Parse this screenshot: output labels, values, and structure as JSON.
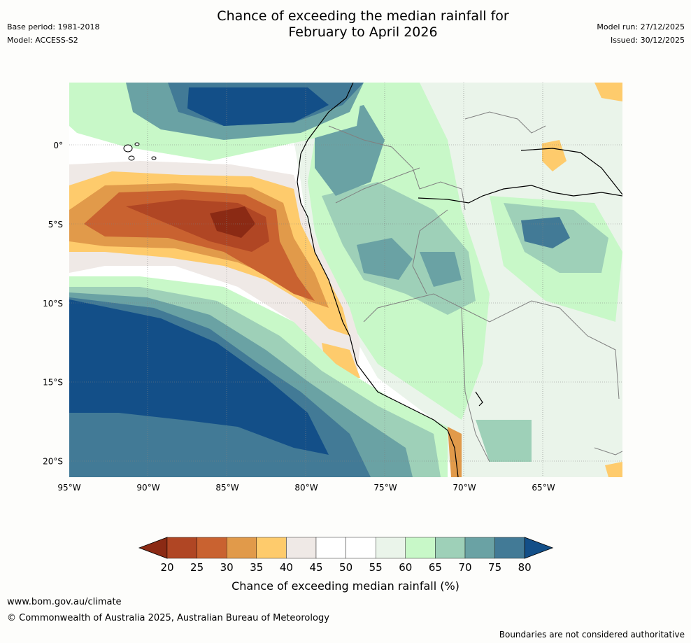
{
  "title_line1": "Chance of exceeding the median rainfall for",
  "title_line2": "February to April 2026",
  "base_period": "Base period: 1981-2018",
  "model": "Model: ACCESS-S2",
  "model_run": "Model run: 27/12/2025",
  "issued": "Issued: 30/12/2025",
  "lat_labels": [
    {
      "text": "0°",
      "lat": 0
    },
    {
      "text": "5°S",
      "lat": -5
    },
    {
      "text": "10°S",
      "lat": -10
    },
    {
      "text": "15°S",
      "lat": -15
    },
    {
      "text": "20°S",
      "lat": -20
    }
  ],
  "lon_labels": [
    {
      "text": "95°W",
      "lon": -95
    },
    {
      "text": "90°W",
      "lon": -90
    },
    {
      "text": "85°W",
      "lon": -85
    },
    {
      "text": "80°W",
      "lon": -80
    },
    {
      "text": "75°W",
      "lon": -75
    },
    {
      "text": "70°W",
      "lon": -70
    },
    {
      "text": "65°W",
      "lon": -65
    }
  ],
  "colorbar": {
    "label": "Chance of exceeding median rainfall (%)",
    "ticks": [
      "20",
      "25",
      "30",
      "35",
      "40",
      "45",
      "50",
      "55",
      "60",
      "65",
      "70",
      "75",
      "80"
    ],
    "colors": [
      "#8b2a14",
      "#b04624",
      "#c96230",
      "#e19a4a",
      "#fecb6c",
      "#efe9e6",
      "#ffffff",
      "#ffffff",
      "#eaf4ea",
      "#c8f8c8",
      "#9ed0b8",
      "#6aa2a4",
      "#427a96",
      "#134f88"
    ]
  },
  "colors": {
    "very_dry": "#8b2a14",
    "dry_1": "#b04624",
    "dry_2": "#c96230",
    "dry_3": "#e19a4a",
    "dry_4": "#fecb6c",
    "neutral": "#efe9e6",
    "wet_1": "#eaf4ea",
    "wet_2": "#c8f8c8",
    "wet_3": "#9ed0b8",
    "wet_4": "#6aa2a4",
    "wet_5": "#427a96",
    "very_wet": "#134f88",
    "coast": "#000000",
    "borders": "#808080"
  },
  "footer": {
    "url": "www.bom.gov.au/climate",
    "copyright": "© Commonwealth of Australia 2025, Australian Bureau of Meteorology",
    "disclaimer": "Boundaries are not considered authoritative"
  }
}
